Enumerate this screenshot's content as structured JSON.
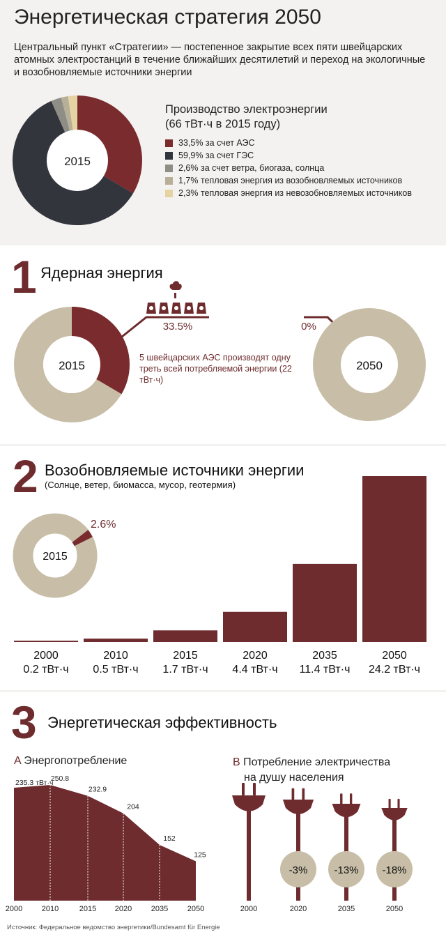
{
  "header": {
    "title": "Энергетическая стратегия 2050",
    "intro": "Центральный пункт «Стратегии» — постепенное закрытие всех пяти швейцарских атомных электростанций в течение ближайших десятилетий и переход на экологичные и возобновляемые источники энергии"
  },
  "production": {
    "title_line1": "Производство электроэнергии",
    "title_line2": "(66 тВт·ч в 2015 году)",
    "center_label": "2015",
    "legend": [
      {
        "label": "33,5% за счет АЭС",
        "color": "#7a2b2d"
      },
      {
        "label": "59,9% за счет ГЭС",
        "color": "#33353d"
      },
      {
        "label": "2,6% за счет ветра, биогаза, солнца",
        "color": "#8e8e86"
      },
      {
        "label": "1,7% тепловая энергия из возобновляемых источников",
        "color": "#b8af98"
      },
      {
        "label": "2,3% тепловая энергия из невозобновляемых источников",
        "color": "#e6d3a3"
      }
    ]
  },
  "section1": {
    "number": "1",
    "heading": "Ядерная энергия",
    "pct_2015": "33.5%",
    "pct_2050": "0%",
    "label_2015": "2015",
    "label_2050": "2050",
    "note": "5 швейцарских АЭС производят одну треть всей потребляемой энергии (22 тВт·ч)"
  },
  "section2": {
    "number": "2",
    "heading": "Возобновляемые источники энергии",
    "subheading": "(Солнце, ветер, биомасса, мусор, геотермия)",
    "donut_label": "2015",
    "donut_pct": "2.6%"
  },
  "section3": {
    "number": "3",
    "heading": "Энергетическая эффективность",
    "a_letter": "A",
    "a_title": "Энергопотребление",
    "b_letter": "B",
    "b_title_line1": "Потребление электричества",
    "b_title_line2": "на душу населения"
  },
  "source": "Источник: Федеральное ведомство энергетики/Bundesamt für Energie",
  "chart_data": [
    {
      "type": "pie",
      "id": "production-2015",
      "title": "Производство электроэнергии (66 тВт·ч в 2015 году)",
      "categories": [
        "за счет АЭС",
        "за счет ГЭС",
        "за счет ветра, биогаза, солнца",
        "тепловая энергия из возобновляемых источников",
        "тепловая энергия из невозобновляемых источников"
      ],
      "values": [
        33.5,
        59.9,
        2.6,
        1.7,
        2.3
      ],
      "colors": [
        "#7a2b2d",
        "#33353d",
        "#8e8e86",
        "#b8af98",
        "#e6d3a3"
      ]
    },
    {
      "type": "pie",
      "id": "nuclear-share",
      "title": "Ядерная энергия",
      "categories": [
        "2015",
        "2050"
      ],
      "values": [
        33.5,
        0
      ],
      "unit": "%"
    },
    {
      "type": "pie",
      "id": "renewables-share-2015",
      "categories": [
        "2015"
      ],
      "values": [
        2.6
      ],
      "unit": "%"
    },
    {
      "type": "bar",
      "id": "renewables",
      "title": "Возобновляемые источники энергии",
      "categories": [
        "2000",
        "2010",
        "2015",
        "2020",
        "2035",
        "2050"
      ],
      "values": [
        0.2,
        0.5,
        1.7,
        4.4,
        11.4,
        24.2
      ],
      "value_labels": [
        "0.2 тВт·ч",
        "0.5 тВт·ч",
        "1.7 тВт·ч",
        "4.4 тВт·ч",
        "11.4 тВт·ч",
        "24.2 тВт·ч"
      ],
      "color": "#6e2c2e"
    },
    {
      "type": "area",
      "id": "consumption",
      "title": "Энергопотребление",
      "x": [
        "2000",
        "2010",
        "2015",
        "2020",
        "2035",
        "2050"
      ],
      "values": [
        235.3,
        250.8,
        232.9,
        204,
        152,
        125
      ],
      "value_labels": [
        "235.3 тВт·ч",
        "250.8",
        "232.9",
        "204",
        "152",
        "125"
      ],
      "color": "#6e2c2e"
    },
    {
      "type": "bar",
      "id": "per-capita",
      "title": "Потребление электричества на душу населения",
      "categories": [
        "2000",
        "2020",
        "2035",
        "2050"
      ],
      "values": [
        0,
        -3,
        -13,
        -18
      ],
      "value_labels": [
        "",
        "-3%",
        "-13%",
        "-18%"
      ],
      "unit": "%"
    }
  ]
}
